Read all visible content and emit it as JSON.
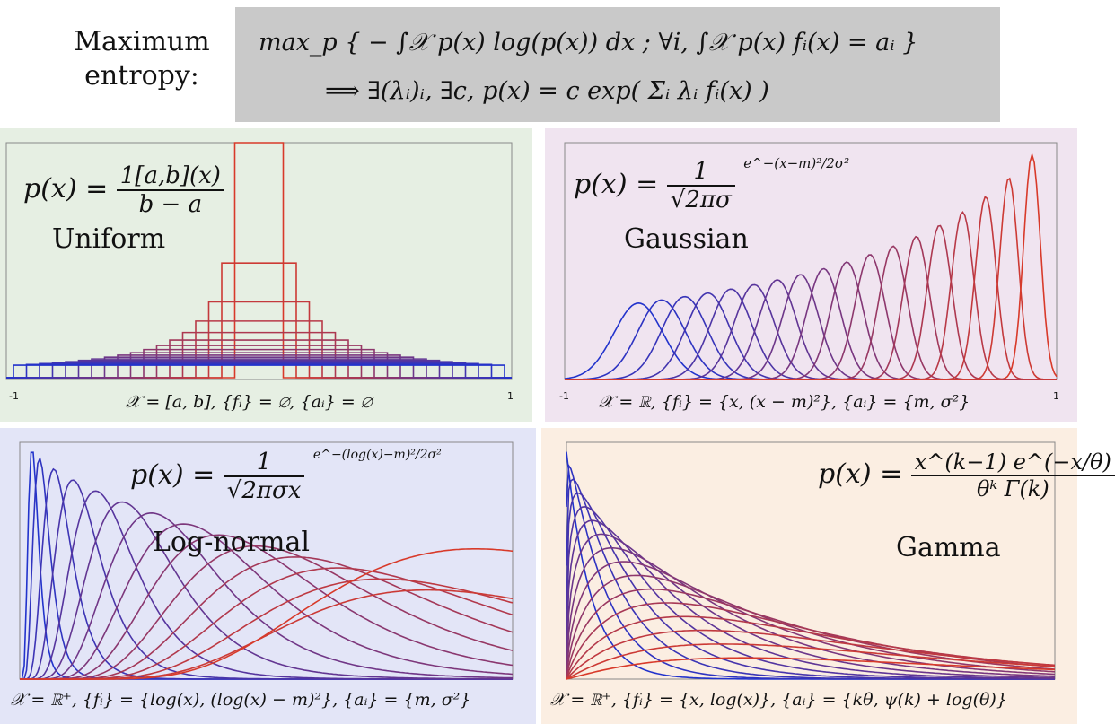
{
  "header": {
    "label": "Maximum entropy:",
    "line1": "max_p { − ∫𝒳 p(x) log(p(x)) dx ; ∀i, ∫𝒳 p(x) fᵢ(x) = aᵢ }",
    "line2": "⟹   ∃(λᵢ)ᵢ, ∃c,    p(x) = c exp( Σᵢ λᵢ fᵢ(x) )"
  },
  "panels": [
    {
      "name": "Uniform",
      "background": "#e6efe3",
      "lhs": "p(x) =",
      "numerator": "1[a,b](x)",
      "denominator": "b − a",
      "support": "𝒳 = [a, b], {fᵢ} = ∅, {aᵢ} = ∅",
      "tick_min": "-1",
      "tick_max": "1"
    },
    {
      "name": "Gaussian",
      "background": "#f0e4f0",
      "lhs": "p(x) =",
      "numerator": "1",
      "denominator": "√2πσ",
      "exponent": "e^−(x−m)²/2σ²",
      "support": "𝒳 = ℝ, {fᵢ} = {x, (x − m)²}, {aᵢ} = {m, σ²}",
      "tick_min": "-1",
      "tick_max": "1"
    },
    {
      "name": "Log-normal",
      "background": "#e3e5f7",
      "lhs": "p(x) =",
      "numerator": "1",
      "denominator": "√2πσx",
      "exponent": "e^−(log(x)−m)²/2σ²",
      "support": "𝒳 = ℝ⁺, {fᵢ} = {log(x), (log(x) − m)²}, {aᵢ} = {m, σ²}"
    },
    {
      "name": "Gamma",
      "background": "#fbeee2",
      "lhs": "p(x) =",
      "numerator": "x^(k−1) e^(−x/θ)",
      "denominator": "θᵏ Γ(k)",
      "support": "𝒳 = ℝ⁺, {fᵢ} = {x, log(x)}, {aᵢ} = {kθ, ψ(k) + log(θ)}"
    }
  ],
  "colors": {
    "start": "#2233cc",
    "end": "#d83a2a",
    "frame": "#888888"
  }
}
